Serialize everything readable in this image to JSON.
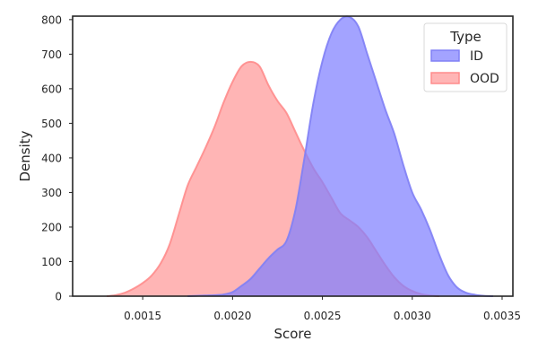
{
  "chart_data": {
    "type": "area",
    "title": "",
    "xlabel": "Score",
    "ylabel": "Density",
    "xlim": [
      0.00111,
      0.00356
    ],
    "ylim": [
      0,
      810
    ],
    "xticks": [
      0.0015,
      0.002,
      0.0025,
      0.003,
      0.0035
    ],
    "xtick_labels": [
      "0.0015",
      "0.0020",
      "0.0025",
      "0.0030",
      "0.0035"
    ],
    "yticks": [
      0,
      100,
      200,
      300,
      400,
      500,
      600,
      700,
      800
    ],
    "ytick_labels": [
      "0",
      "100",
      "200",
      "300",
      "400",
      "500",
      "600",
      "700",
      "800"
    ],
    "grid": false,
    "legend": {
      "title": "Type",
      "position": "top-right",
      "entries": [
        "ID",
        "OOD"
      ]
    },
    "series": [
      {
        "name": "OOD",
        "color": "#ff9999",
        "line_color": "#ff8c8c",
        "x": [
          0.0013,
          0.00135,
          0.0014,
          0.00145,
          0.0015,
          0.00155,
          0.0016,
          0.00165,
          0.0017,
          0.00175,
          0.0018,
          0.00185,
          0.0019,
          0.00195,
          0.002,
          0.00205,
          0.0021,
          0.00215,
          0.0022,
          0.00225,
          0.0023,
          0.00235,
          0.0024,
          0.00245,
          0.0025,
          0.00255,
          0.0026,
          0.00265,
          0.0027,
          0.00275,
          0.0028,
          0.00285,
          0.0029,
          0.00295,
          0.003,
          0.00305,
          0.0031,
          0.00315
        ],
        "values": [
          0,
          3,
          10,
          22,
          38,
          60,
          95,
          150,
          235,
          320,
          375,
          430,
          490,
          560,
          620,
          665,
          678,
          665,
          610,
          565,
          530,
          475,
          420,
          370,
          330,
          285,
          240,
          220,
          200,
          170,
          130,
          90,
          55,
          30,
          15,
          6,
          2,
          0
        ]
      },
      {
        "name": "ID",
        "color": "#8080ff",
        "line_color": "#8080f5",
        "x": [
          0.00175,
          0.0018,
          0.00185,
          0.0019,
          0.00195,
          0.002,
          0.00205,
          0.0021,
          0.00215,
          0.0022,
          0.00225,
          0.0023,
          0.00235,
          0.0024,
          0.00245,
          0.0025,
          0.00255,
          0.0026,
          0.00265,
          0.0027,
          0.00275,
          0.0028,
          0.00285,
          0.0029,
          0.00295,
          0.003,
          0.00305,
          0.0031,
          0.00315,
          0.0032,
          0.00325,
          0.0033,
          0.00335,
          0.0034,
          0.00345
        ],
        "values": [
          0,
          1,
          2,
          3,
          5,
          12,
          30,
          50,
          80,
          110,
          135,
          160,
          250,
          400,
          560,
          680,
          760,
          800,
          808,
          780,
          700,
          620,
          540,
          470,
          380,
          300,
          250,
          190,
          120,
          60,
          25,
          10,
          4,
          1,
          0
        ]
      }
    ]
  }
}
